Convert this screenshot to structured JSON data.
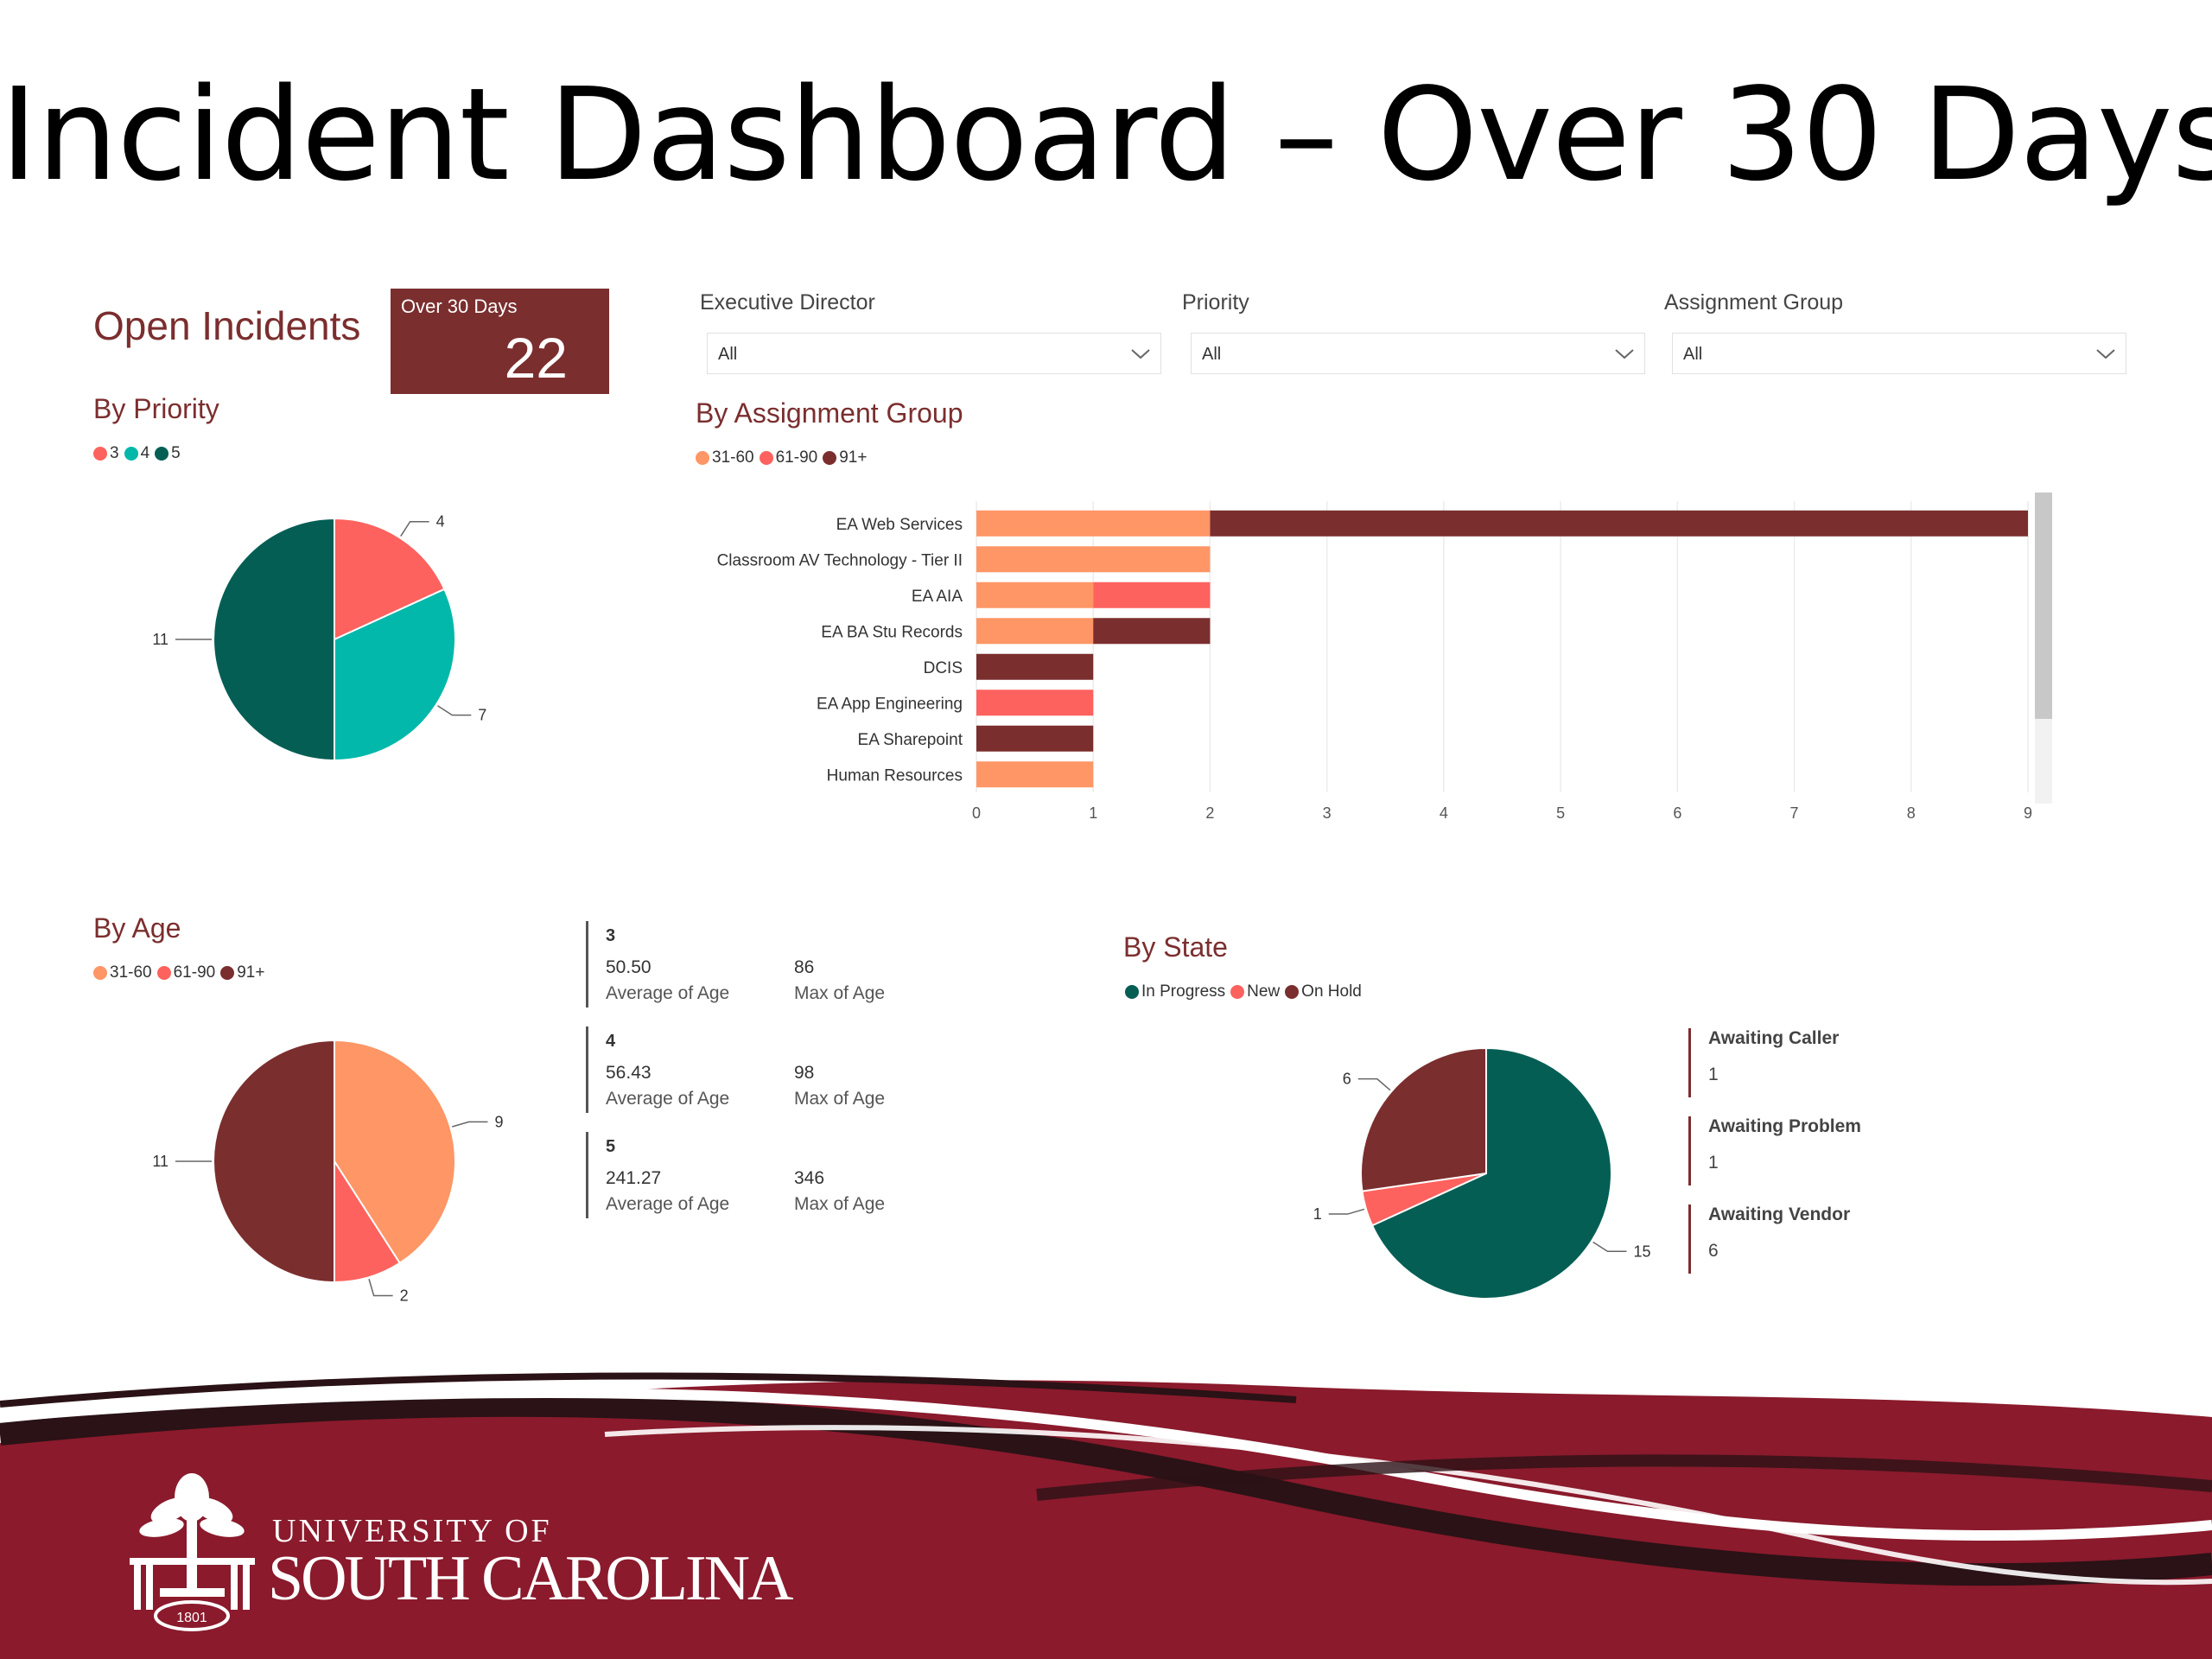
{
  "slide": {
    "title": "Incident Dashboard – Over 30 Days"
  },
  "open_incidents": {
    "label": "Open Incidents",
    "kpi_label": "Over 30 Days",
    "kpi_value": "22"
  },
  "filters": [
    {
      "label": "Executive Director",
      "value": "All"
    },
    {
      "label": "Priority",
      "value": "All"
    },
    {
      "label": "Assignment Group",
      "value": "All"
    }
  ],
  "by_priority": {
    "title": "By Priority",
    "legend": [
      {
        "label": "3",
        "color": "#fd625e"
      },
      {
        "label": "4",
        "color": "#01b8aa"
      },
      {
        "label": "5",
        "color": "#045e54"
      }
    ]
  },
  "by_assignment": {
    "title": "By Assignment Group",
    "legend": [
      {
        "label": "31-60",
        "color": "#fe9666"
      },
      {
        "label": "61-90",
        "color": "#fd625e"
      },
      {
        "label": "91+",
        "color": "#7b2e2e"
      }
    ]
  },
  "by_age": {
    "title": "By Age",
    "legend": [
      {
        "label": "31-60",
        "color": "#fe9666"
      },
      {
        "label": "61-90",
        "color": "#fd625e"
      },
      {
        "label": "91+",
        "color": "#7b2e2e"
      }
    ]
  },
  "by_state": {
    "title": "By State",
    "legend": [
      {
        "label": "In Progress",
        "color": "#045e54"
      },
      {
        "label": "New",
        "color": "#fd625e"
      },
      {
        "label": "On Hold",
        "color": "#7b2e2e"
      }
    ]
  },
  "age_cards": [
    {
      "priority": "3",
      "avg": "50.50",
      "avg_label": "Average of Age",
      "max": "86",
      "max_label": "Max of Age"
    },
    {
      "priority": "4",
      "avg": "56.43",
      "avg_label": "Average of Age",
      "max": "98",
      "max_label": "Max of Age"
    },
    {
      "priority": "5",
      "avg": "241.27",
      "avg_label": "Average of Age",
      "max": "346",
      "max_label": "Max of Age"
    }
  ],
  "state_cards": [
    {
      "label": "Awaiting Caller",
      "value": "1"
    },
    {
      "label": "Awaiting Problem",
      "value": "1"
    },
    {
      "label": "Awaiting Vendor",
      "value": "6"
    }
  ],
  "branding": {
    "line1": "UNIVERSITY OF",
    "line2": "SOUTH CAROLINA",
    "seal_year": "1801"
  },
  "chart_data": [
    {
      "type": "pie",
      "title": "By Priority",
      "labels": [
        "3",
        "4",
        "5"
      ],
      "values": [
        4,
        7,
        11
      ],
      "colors": [
        "#fd625e",
        "#01b8aa",
        "#045e54"
      ]
    },
    {
      "type": "bar",
      "orientation": "horizontal",
      "stacked": true,
      "title": "By Assignment Group",
      "categories": [
        "EA Web Services",
        "Classroom AV Technology - Tier II",
        "EA AIA",
        "EA BA Stu Records",
        "DCIS",
        "EA App Engineering",
        "EA Sharepoint",
        "Human Resources"
      ],
      "series": [
        {
          "name": "31-60",
          "color": "#fe9666",
          "values": [
            2,
            2,
            1,
            1,
            0,
            0,
            0,
            1
          ]
        },
        {
          "name": "61-90",
          "color": "#fd625e",
          "values": [
            0,
            0,
            1,
            0,
            0,
            1,
            0,
            0
          ]
        },
        {
          "name": "91+",
          "color": "#7b2e2e",
          "values": [
            7,
            0,
            0,
            1,
            1,
            0,
            1,
            0
          ]
        }
      ],
      "xlim": [
        0,
        9
      ],
      "xticks": [
        0,
        1,
        2,
        3,
        4,
        5,
        6,
        7,
        8,
        9
      ],
      "grid": true,
      "legend": "top-left"
    },
    {
      "type": "pie",
      "title": "By Age",
      "labels": [
        "31-60",
        "61-90",
        "91+"
      ],
      "values": [
        9,
        2,
        11
      ],
      "colors": [
        "#fe9666",
        "#fd625e",
        "#7b2e2e"
      ]
    },
    {
      "type": "pie",
      "title": "By State",
      "labels": [
        "In Progress",
        "New",
        "On Hold"
      ],
      "values": [
        15,
        1,
        6
      ],
      "colors": [
        "#045e54",
        "#fd625e",
        "#7b2e2e"
      ]
    }
  ]
}
